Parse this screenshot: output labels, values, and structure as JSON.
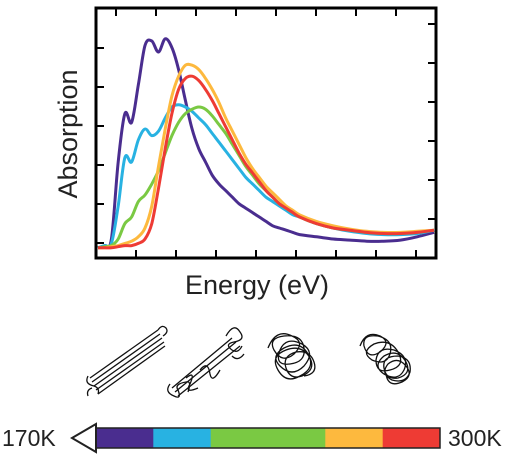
{
  "chart_data": {
    "type": "line",
    "title": "",
    "xlabel": "Energy (eV)",
    "ylabel": "Absorption",
    "xlim": [
      0,
      1
    ],
    "ylim": [
      0,
      1
    ],
    "grid": false,
    "x": [
      0.0,
      0.02,
      0.04,
      0.06,
      0.08,
      0.1,
      0.12,
      0.14,
      0.16,
      0.18,
      0.2,
      0.22,
      0.24,
      0.26,
      0.28,
      0.3,
      0.32,
      0.34,
      0.36,
      0.38,
      0.4,
      0.42,
      0.44,
      0.46,
      0.48,
      0.5,
      0.52,
      0.54,
      0.56,
      0.58,
      0.6,
      0.65,
      0.7,
      0.75,
      0.8,
      0.85,
      0.9,
      0.95,
      1.0
    ],
    "series": [
      {
        "color": "#4a2d8f",
        "values": [
          0.01,
          0.02,
          0.05,
          0.4,
          0.62,
          0.58,
          0.75,
          0.93,
          0.95,
          0.9,
          0.96,
          0.92,
          0.82,
          0.68,
          0.55,
          0.46,
          0.4,
          0.34,
          0.3,
          0.27,
          0.24,
          0.21,
          0.19,
          0.17,
          0.15,
          0.13,
          0.11,
          0.1,
          0.09,
          0.08,
          0.07,
          0.06,
          0.05,
          0.045,
          0.04,
          0.04,
          0.045,
          0.06,
          0.08
        ]
      },
      {
        "color": "#28b2e2",
        "values": [
          0.01,
          0.02,
          0.03,
          0.2,
          0.42,
          0.4,
          0.5,
          0.55,
          0.52,
          0.54,
          0.6,
          0.65,
          0.66,
          0.65,
          0.63,
          0.6,
          0.57,
          0.53,
          0.49,
          0.45,
          0.41,
          0.37,
          0.33,
          0.3,
          0.27,
          0.24,
          0.22,
          0.2,
          0.18,
          0.16,
          0.15,
          0.12,
          0.1,
          0.085,
          0.075,
          0.07,
          0.07,
          0.075,
          0.09
        ]
      },
      {
        "color": "#7ac943",
        "values": [
          0.01,
          0.015,
          0.02,
          0.05,
          0.12,
          0.15,
          0.22,
          0.25,
          0.3,
          0.36,
          0.44,
          0.52,
          0.58,
          0.62,
          0.64,
          0.65,
          0.64,
          0.61,
          0.57,
          0.53,
          0.48,
          0.43,
          0.38,
          0.34,
          0.3,
          0.27,
          0.24,
          0.21,
          0.19,
          0.17,
          0.15,
          0.12,
          0.1,
          0.09,
          0.08,
          0.075,
          0.075,
          0.08,
          0.09
        ]
      },
      {
        "color": "#fdb93e",
        "values": [
          0.01,
          0.01,
          0.015,
          0.02,
          0.03,
          0.04,
          0.06,
          0.1,
          0.2,
          0.38,
          0.55,
          0.7,
          0.79,
          0.84,
          0.84,
          0.82,
          0.78,
          0.73,
          0.67,
          0.6,
          0.54,
          0.48,
          0.42,
          0.37,
          0.33,
          0.29,
          0.26,
          0.23,
          0.2,
          0.18,
          0.16,
          0.13,
          0.11,
          0.095,
          0.085,
          0.08,
          0.08,
          0.085,
          0.09
        ]
      },
      {
        "color": "#ee3b34",
        "values": [
          0.01,
          0.01,
          0.01,
          0.015,
          0.02,
          0.02,
          0.03,
          0.05,
          0.12,
          0.28,
          0.46,
          0.62,
          0.73,
          0.78,
          0.79,
          0.77,
          0.73,
          0.68,
          0.62,
          0.56,
          0.5,
          0.44,
          0.39,
          0.35,
          0.31,
          0.27,
          0.24,
          0.21,
          0.19,
          0.17,
          0.15,
          0.12,
          0.1,
          0.09,
          0.08,
          0.075,
          0.075,
          0.08,
          0.09
        ]
      }
    ]
  },
  "temperature_scale": {
    "low_label": "170K",
    "high_label": "300K",
    "segment_colors": [
      "#4a2d8f",
      "#28b2e2",
      "#7ac943",
      "#7ac943",
      "#fdb93e",
      "#ee3b34"
    ]
  }
}
